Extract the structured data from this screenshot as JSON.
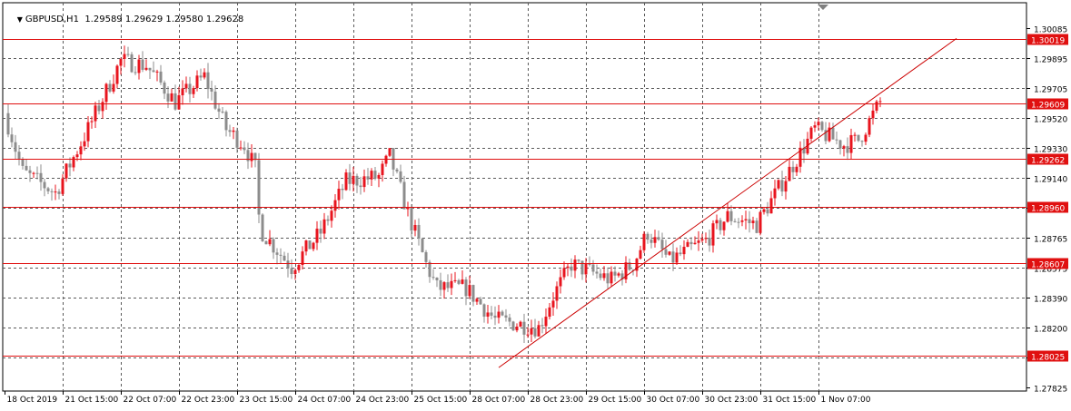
{
  "header": {
    "symbol_timeframe": "GBPUSD,H1",
    "ohlc": "1.29589 1.29629 1.29580 1.29628"
  },
  "colors": {
    "bull": "#e8141e",
    "bear": "#8c8c8c",
    "grid": "#5a5a5a",
    "level_line": "#e01010",
    "label_bg": "#e01010",
    "label_text": "#ffffff",
    "trendline": "#cc0000"
  },
  "chart_data": {
    "type": "candlestick",
    "symbol": "GBPUSD",
    "timeframe": "H1",
    "grid": true,
    "ylim": [
      1.27825,
      1.30085
    ],
    "y_ticks": [
      "1.30085",
      "1.29895",
      "1.29705",
      "1.29520",
      "1.29330",
      "1.29140",
      "1.28950",
      "1.28765",
      "1.28575",
      "1.28390",
      "1.28200",
      "1.28010",
      "1.27825"
    ],
    "x_ticks": [
      "18 Oct 2019",
      "21 Oct 15:00",
      "22 Oct 07:00",
      "22 Oct 23:00",
      "23 Oct 15:00",
      "24 Oct 07:00",
      "24 Oct 23:00",
      "25 Oct 15:00",
      "28 Oct 07:00",
      "28 Oct 23:00",
      "29 Oct 15:00",
      "30 Oct 07:00",
      "30 Oct 23:00",
      "31 Oct 15:00",
      "1 Nov 07:00"
    ],
    "horizontal_levels": [
      "1.30019",
      "1.29609",
      "1.29262",
      "1.28960",
      "1.28607",
      "1.28025"
    ],
    "trendline": {
      "from": {
        "time": "25 Oct 16:00",
        "price": 1.2795
      },
      "to": {
        "time": "1 Nov 22:00",
        "price": 1.3002
      }
    },
    "close_path": [
      {
        "t": "18 Oct 2019",
        "p": 1.2955
      },
      {
        "t": "18 Oct 05:00",
        "p": 1.2918
      },
      {
        "t": "18 Oct 14:00",
        "p": 1.2905
      },
      {
        "t": "18 Oct 23:00",
        "p": 1.2945
      },
      {
        "t": "21 Oct 08:00",
        "p": 1.2988
      },
      {
        "t": "21 Oct 15:00",
        "p": 1.2985
      },
      {
        "t": "21 Oct 23:00",
        "p": 1.2962
      },
      {
        "t": "22 Oct 07:00",
        "p": 1.2978
      },
      {
        "t": "22 Oct 13:00",
        "p": 1.2945
      },
      {
        "t": "22 Oct 18:00",
        "p": 1.2935
      },
      {
        "t": "22 Oct 21:00",
        "p": 1.292
      },
      {
        "t": "22 Oct 22:00",
        "p": 1.289
      },
      {
        "t": "22 Oct 23:00",
        "p": 1.288
      },
      {
        "t": "23 Oct 07:00",
        "p": 1.2858
      },
      {
        "t": "23 Oct 15:00",
        "p": 1.288
      },
      {
        "t": "23 Oct 22:00",
        "p": 1.2912
      },
      {
        "t": "24 Oct 07:00",
        "p": 1.2915
      },
      {
        "t": "24 Oct 10:00",
        "p": 1.2928
      },
      {
        "t": "24 Oct 15:00",
        "p": 1.2892
      },
      {
        "t": "24 Oct 20:00",
        "p": 1.286
      },
      {
        "t": "24 Oct 23:00",
        "p": 1.2845
      },
      {
        "t": "25 Oct 07:00",
        "p": 1.2845
      },
      {
        "t": "25 Oct 15:00",
        "p": 1.2825
      },
      {
        "t": "28 Oct 03:00",
        "p": 1.282
      },
      {
        "t": "28 Oct 07:00",
        "p": 1.284
      },
      {
        "t": "28 Oct 12:00",
        "p": 1.286
      },
      {
        "t": "28 Oct 23:00",
        "p": 1.285
      },
      {
        "t": "29 Oct 05:00",
        "p": 1.286
      },
      {
        "t": "29 Oct 09:00",
        "p": 1.288
      },
      {
        "t": "29 Oct 15:00",
        "p": 1.2862
      },
      {
        "t": "30 Oct 01:00",
        "p": 1.2875
      },
      {
        "t": "30 Oct 07:00",
        "p": 1.289
      },
      {
        "t": "30 Oct 15:00",
        "p": 1.2885
      },
      {
        "t": "30 Oct 19:00",
        "p": 1.29
      },
      {
        "t": "30 Oct 23:00",
        "p": 1.2915
      },
      {
        "t": "31 Oct 07:00",
        "p": 1.2945
      },
      {
        "t": "31 Oct 15:00",
        "p": 1.2935
      },
      {
        "t": "31 Oct 19:00",
        "p": 1.2938
      },
      {
        "t": "1 Nov 01:00",
        "p": 1.2962
      }
    ]
  }
}
